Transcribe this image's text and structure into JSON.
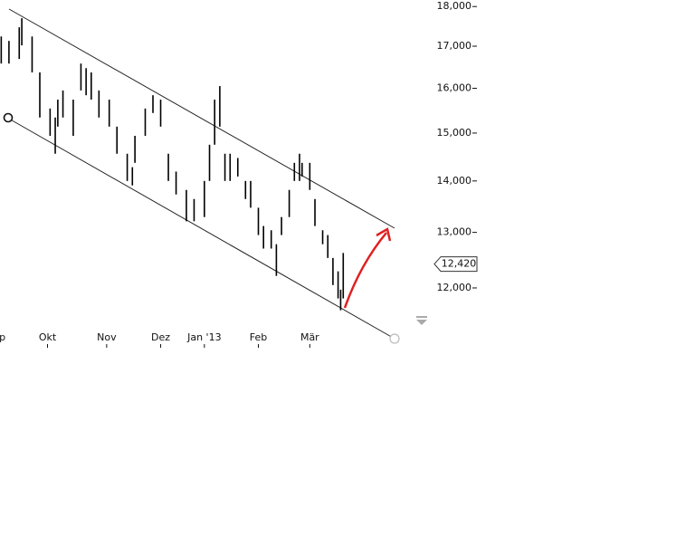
{
  "chart_data": {
    "type": "ohlc",
    "color": "#000000",
    "log_scale": true,
    "x": [
      4,
      7,
      11,
      12,
      16,
      19,
      23,
      25,
      26,
      28,
      32,
      35,
      37,
      39,
      42,
      46,
      49,
      53,
      55,
      56,
      60,
      63,
      66,
      69,
      72,
      76,
      79,
      83,
      85,
      87,
      89,
      91,
      93,
      96,
      99,
      101,
      104,
      106,
      109,
      111,
      113,
      116,
      118,
      120,
      121,
      124,
      126,
      129,
      131,
      133,
      135,
      136,
      137
    ],
    "high": [
      17240,
      17130,
      17470,
      17700,
      17240,
      16370,
      15540,
      15340,
      15740,
      15950,
      15740,
      16580,
      16470,
      16370,
      15950,
      15740,
      15140,
      14560,
      14280,
      14940,
      15540,
      15840,
      15740,
      14560,
      14190,
      13820,
      13640,
      14000,
      14750,
      15740,
      16050,
      14560,
      14560,
      14470,
      14000,
      14000,
      13470,
      13120,
      13040,
      12780,
      13290,
      13820,
      14370,
      14560,
      14370,
      14370,
      13640,
      13040,
      12950,
      12530,
      12290,
      11970,
      12620
    ],
    "low": [
      16580,
      16580,
      16690,
      17020,
      16370,
      15340,
      14940,
      14560,
      15140,
      15340,
      14940,
      15950,
      15840,
      15740,
      15340,
      15140,
      14560,
      14000,
      13910,
      14370,
      14940,
      15440,
      15140,
      14000,
      13730,
      13210,
      13210,
      13290,
      14000,
      14750,
      15140,
      14000,
      14000,
      14090,
      13640,
      13470,
      12950,
      12700,
      12700,
      12210,
      12950,
      13290,
      14000,
      14000,
      14090,
      13820,
      13120,
      12780,
      12530,
      12050,
      11820,
      11620,
      11820
    ],
    "xlim": [
      0,
      164
    ],
    "xticks": [
      {
        "value": 2,
        "label": "Sep"
      },
      {
        "value": 22,
        "label": "Okt"
      },
      {
        "value": 45,
        "label": "Nov"
      },
      {
        "value": 66,
        "label": "Dez"
      },
      {
        "value": 83,
        "label": "Jan '13"
      },
      {
        "value": 104,
        "label": "Feb"
      },
      {
        "value": 124,
        "label": "Mär"
      }
    ],
    "ylim": [
      11330,
      18170
    ],
    "yticks": [
      {
        "value": 12000,
        "label": "12,000"
      },
      {
        "value": 13000,
        "label": "13,000"
      },
      {
        "value": 14000,
        "label": "14,000"
      },
      {
        "value": 15000,
        "label": "15,000"
      },
      {
        "value": 16000,
        "label": "16,000"
      },
      {
        "value": 17000,
        "label": "17,000"
      },
      {
        "value": 18000,
        "label": "18,000"
      }
    ],
    "last_price": {
      "value": 12420,
      "label": "12,420"
    }
  }
}
